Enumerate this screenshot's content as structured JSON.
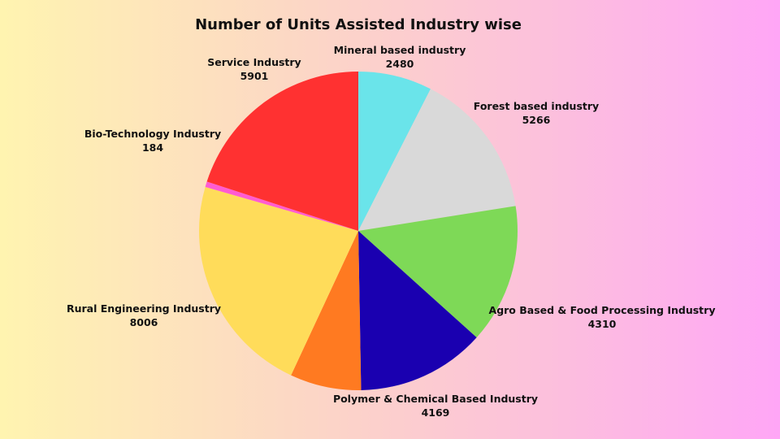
{
  "chart_data": {
    "type": "pie",
    "title": "Number of Units Assisted Industry wise",
    "slices": [
      {
        "label": "Mineral based industry",
        "value": 2480,
        "color": "#6ae4ea"
      },
      {
        "label": "Forest based industry",
        "value": 5266,
        "color": "#d9d9d9"
      },
      {
        "label": "Agro Based & Food Processing Industry",
        "value": 4310,
        "color": "#7ed957"
      },
      {
        "label": "Polymer & Chemical Based Industry",
        "value": 4169,
        "color": "#1a00b0"
      },
      {
        "label": "Rural Engineering Industry",
        "value": 8006,
        "color": "#ff7a21"
      },
      {
        "label": "Rural Engineering Industry",
        "value": 8006,
        "color": "#ffdc5a"
      },
      {
        "label": "Bio-Technology Industry",
        "value": 184,
        "color": "#ff5cd2"
      },
      {
        "label": "Service Industry",
        "value": 5901,
        "color": "#ff3131"
      }
    ]
  }
}
